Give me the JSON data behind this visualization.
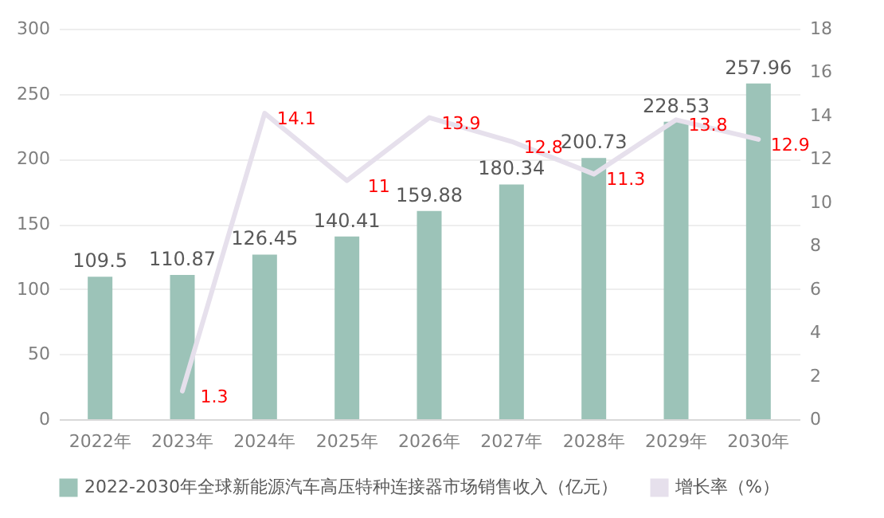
{
  "chart_data": {
    "type": "bar",
    "categories": [
      "2022年",
      "2023年",
      "2024年",
      "2025年",
      "2026年",
      "2027年",
      "2028年",
      "2029年",
      "2030年"
    ],
    "series": [
      {
        "name": "2022-2030年全球新能源汽车高压特种连接器市场销售收入（亿元）",
        "color": "#9cc3b8",
        "values": [
          109.5,
          110.87,
          126.45,
          140.41,
          159.88,
          180.34,
          200.73,
          228.53,
          257.96
        ]
      },
      {
        "name": "增长率（%）",
        "type": "line",
        "axis": "y2",
        "color": "#e6e0ec",
        "values": [
          null,
          1.3,
          14.1,
          11,
          13.9,
          12.8,
          11.3,
          13.8,
          12.9
        ]
      }
    ],
    "ylim": [
      0,
      300
    ],
    "yticks": [
      0,
      50,
      100,
      150,
      200,
      250,
      300
    ],
    "y2lim": [
      0,
      18
    ],
    "y2ticks": [
      0,
      2,
      4,
      6,
      8,
      10,
      12,
      14,
      16,
      18
    ],
    "data_labels": true,
    "grid": "y",
    "legend": "bottom",
    "line_style": "solid",
    "marker": "none"
  }
}
